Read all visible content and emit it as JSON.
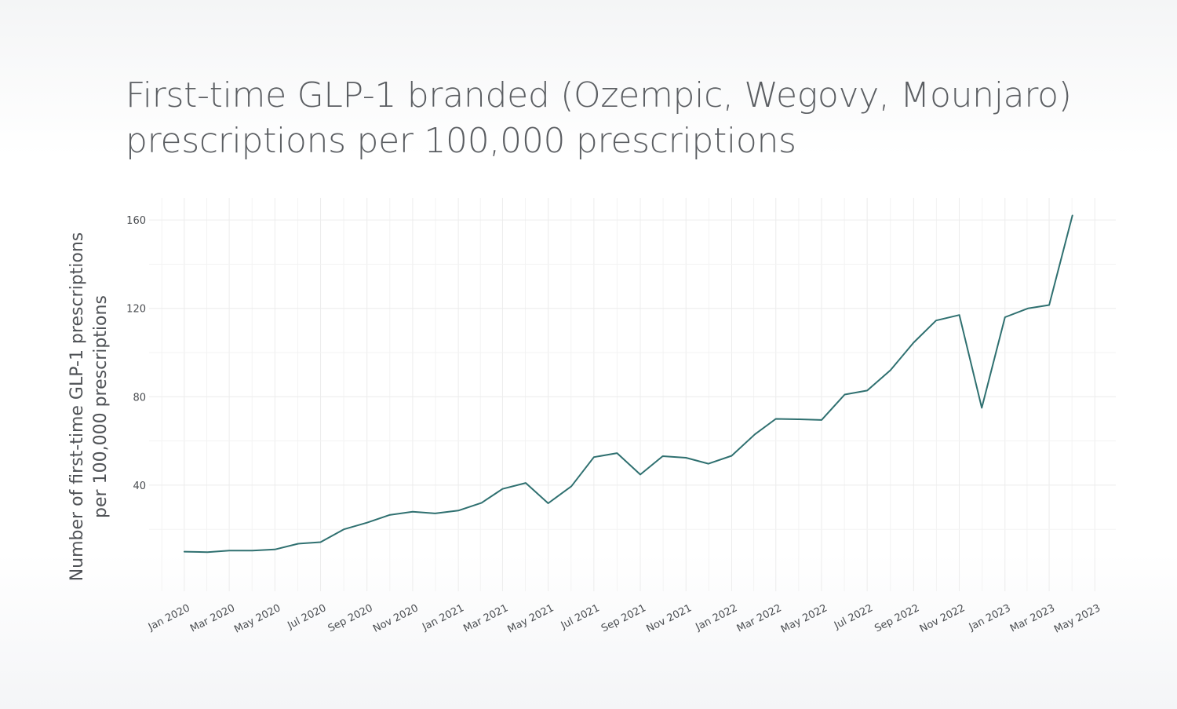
{
  "title_lines": [
    "First-time GLP-1 branded (Ozempic, Wegovy, Mounjaro)",
    "prescriptions per 100,000 prescriptions"
  ],
  "chart_data": {
    "type": "line",
    "ylabel_lines": [
      "Number of first-time GLP-1 prescriptions",
      "per 100,000 prescriptions"
    ],
    "ylim": [
      -8,
      170
    ],
    "xlim": [
      "2019-11-15",
      "2023-05-29"
    ],
    "yticks": [
      40,
      80,
      120,
      160
    ],
    "xticks": [
      {
        "date": "2020-01-01",
        "label": "Jan 2020"
      },
      {
        "date": "2020-03-01",
        "label": "Mar 2020"
      },
      {
        "date": "2020-05-01",
        "label": "May 2020"
      },
      {
        "date": "2020-07-01",
        "label": "Jul 2020"
      },
      {
        "date": "2020-09-01",
        "label": "Sep 2020"
      },
      {
        "date": "2020-11-01",
        "label": "Nov 2020"
      },
      {
        "date": "2021-01-01",
        "label": "Jan 2021"
      },
      {
        "date": "2021-03-01",
        "label": "Mar 2021"
      },
      {
        "date": "2021-05-01",
        "label": "May 2021"
      },
      {
        "date": "2021-07-01",
        "label": "Jul 2021"
      },
      {
        "date": "2021-09-01",
        "label": "Sep 2021"
      },
      {
        "date": "2021-11-01",
        "label": "Nov 2021"
      },
      {
        "date": "2022-01-01",
        "label": "Jan 2022"
      },
      {
        "date": "2022-03-01",
        "label": "Mar 2022"
      },
      {
        "date": "2022-05-01",
        "label": "May 2022"
      },
      {
        "date": "2022-07-01",
        "label": "Jul 2022"
      },
      {
        "date": "2022-09-01",
        "label": "Sep 2022"
      },
      {
        "date": "2022-11-01",
        "label": "Nov 2022"
      },
      {
        "date": "2023-01-01",
        "label": "Jan 2023"
      },
      {
        "date": "2023-03-01",
        "label": "Mar 2023"
      },
      {
        "date": "2023-05-01",
        "label": "May 2023"
      }
    ],
    "grid": true,
    "line_color": "#2f7070",
    "series": [
      {
        "x": [
          "2020-01-01",
          "2020-02-01",
          "2020-03-01",
          "2020-04-01",
          "2020-05-01",
          "2020-06-01",
          "2020-07-01",
          "2020-08-01",
          "2020-09-01",
          "2020-10-01",
          "2020-11-01",
          "2020-12-01",
          "2021-01-01",
          "2021-02-01",
          "2021-03-01",
          "2021-04-01",
          "2021-05-01",
          "2021-06-01",
          "2021-07-01",
          "2021-08-01",
          "2021-09-01",
          "2021-10-01",
          "2021-11-01",
          "2021-12-01",
          "2022-01-01",
          "2022-02-01",
          "2022-03-01",
          "2022-04-01",
          "2022-05-01",
          "2022-06-01",
          "2022-07-01",
          "2022-08-01",
          "2022-09-01",
          "2022-10-01",
          "2022-11-01",
          "2022-12-01",
          "2023-01-01",
          "2023-02-01",
          "2023-03-01",
          "2023-04-01"
        ],
        "values": [
          9.9,
          9.7,
          10.4,
          10.4,
          10.9,
          13.5,
          14.2,
          20.0,
          23.0,
          26.5,
          28.0,
          27.2,
          28.5,
          32.0,
          38.3,
          41.0,
          31.8,
          39.5,
          52.7,
          54.5,
          44.8,
          53.1,
          52.4,
          49.7,
          53.3,
          63.0,
          70.0,
          69.8,
          69.5,
          81.0,
          82.8,
          92.0,
          104.5,
          114.5,
          117.0,
          75.0,
          116.0,
          120.0,
          121.5,
          162.0
        ]
      }
    ]
  }
}
